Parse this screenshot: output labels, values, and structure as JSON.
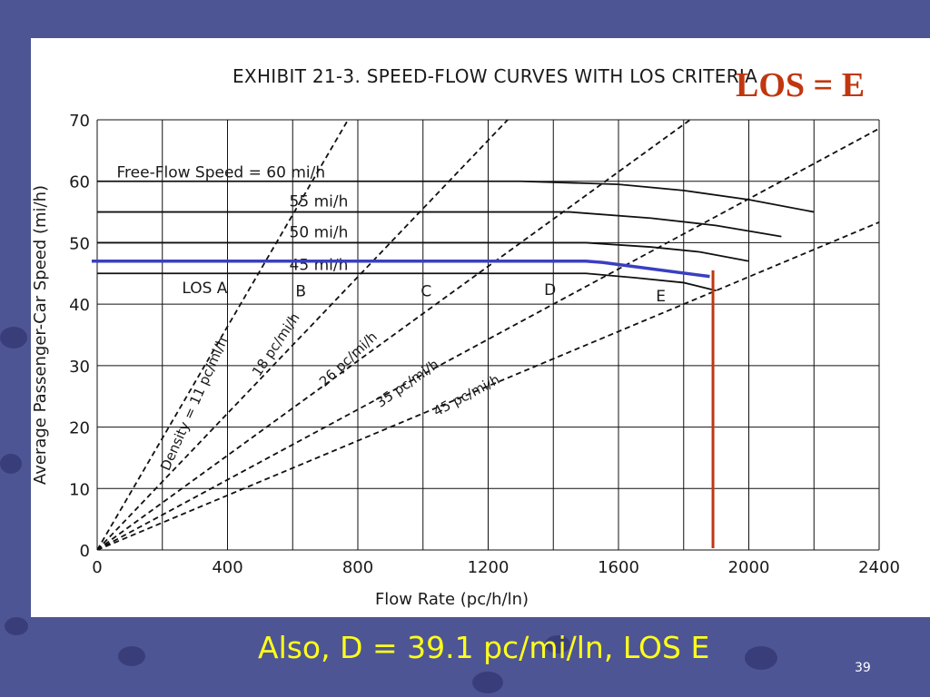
{
  "slide": {
    "heading": "LOS = E",
    "footer": "Also, D = 39.1 pc/mi/ln, LOS E",
    "number": "39",
    "colors": {
      "background": "#4e5594",
      "heading": "#c0370f",
      "footer": "#ffff1a",
      "marker": "#c0370f",
      "operating_curve": "#3a3fbf"
    }
  },
  "chart_data": {
    "type": "line",
    "title": "EXHIBIT 21-3.  SPEED-FLOW CURVES WITH LOS CRITERIA",
    "xlabel": "Flow Rate (pc/h/ln)",
    "ylabel": "Average Passenger-Car Speed (mi/h)",
    "xlim": [
      0,
      2400
    ],
    "ylim": [
      0,
      70
    ],
    "xticks": [
      0,
      400,
      800,
      1200,
      1600,
      2000,
      2400
    ],
    "yticks": [
      0,
      10,
      20,
      30,
      40,
      50,
      60,
      70
    ],
    "grid": true,
    "series": [
      {
        "name": "Free-Flow Speed = 60 mi/h",
        "x": [
          0,
          1300,
          1600,
          1800,
          2000,
          2200
        ],
        "y": [
          60,
          60,
          59.5,
          58.5,
          57,
          55
        ]
      },
      {
        "name": "55 mi/h",
        "x": [
          0,
          1450,
          1700,
          1900,
          2100
        ],
        "y": [
          55,
          55,
          54,
          52.8,
          51
        ]
      },
      {
        "name": "50 mi/h",
        "x": [
          0,
          1500,
          1700,
          1850,
          2000
        ],
        "y": [
          50,
          50,
          49.3,
          48.5,
          47
        ]
      },
      {
        "name": "45 mi/h",
        "x": [
          0,
          1500,
          1650,
          1800,
          1900
        ],
        "y": [
          45,
          45,
          44.3,
          43.5,
          42.2
        ]
      }
    ],
    "density_lines": [
      {
        "name": "Density = 11 pc/mi/h",
        "density": 11
      },
      {
        "name": "18 pc/mi/h",
        "density": 18
      },
      {
        "name": "26 pc/mi/h",
        "density": 26
      },
      {
        "name": "35 pc/mi/h",
        "density": 35
      },
      {
        "name": "45 pc/mi/h",
        "density": 45
      }
    ],
    "los_regions": [
      "LOS A",
      "B",
      "C",
      "D",
      "E"
    ],
    "operating_curve": {
      "x": [
        0,
        1500,
        1550,
        1880
      ],
      "y": [
        47,
        47,
        46.8,
        44.5
      ]
    },
    "operating_flow": 1890
  }
}
